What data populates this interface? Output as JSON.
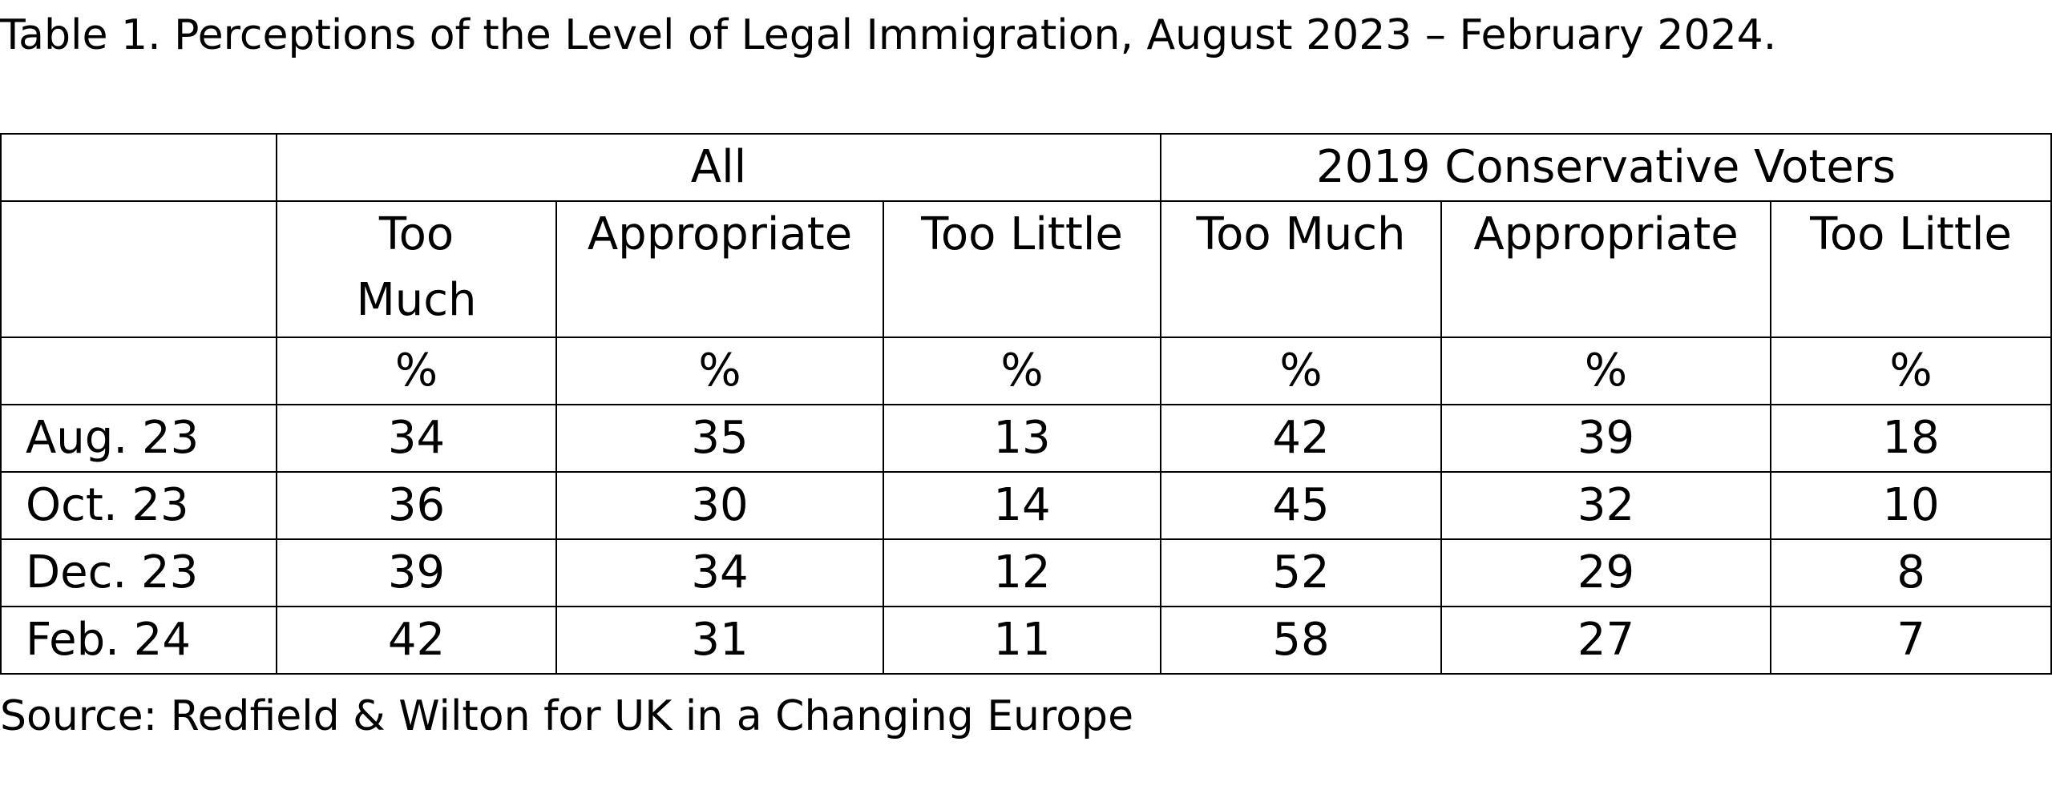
{
  "title": "Table 1. Perceptions of the Level of Legal Immigration, August 2023 – February 2024.",
  "source": "Source: Redfield & Wilton for UK in a Changing Europe",
  "chart_data": {
    "type": "table",
    "title": "Table 1. Perceptions of the Level of Legal Immigration, August 2023 – February 2024.",
    "groups": [
      "All",
      "2019 Conservative Voters"
    ],
    "columns": [
      "Too Much",
      "Appropriate",
      "Too Little",
      "Too Much",
      "Appropriate",
      "Too Little"
    ],
    "units": [
      "%",
      "%",
      "%",
      "%",
      "%",
      "%"
    ],
    "rows": [
      {
        "label": "Aug. 23",
        "values": [
          "34",
          "35",
          "13",
          "42",
          "39",
          "18"
        ]
      },
      {
        "label": "Oct. 23",
        "values": [
          "36",
          "30",
          "14",
          "45",
          "32",
          "10"
        ]
      },
      {
        "label": "Dec. 23",
        "values": [
          "39",
          "34",
          "12",
          "52",
          "29",
          "8"
        ]
      },
      {
        "label": "Feb. 24",
        "values": [
          "42",
          "31",
          "11",
          "58",
          "27",
          "7"
        ]
      }
    ],
    "source": "Source: Redfield & Wilton for UK in a Changing Europe"
  }
}
